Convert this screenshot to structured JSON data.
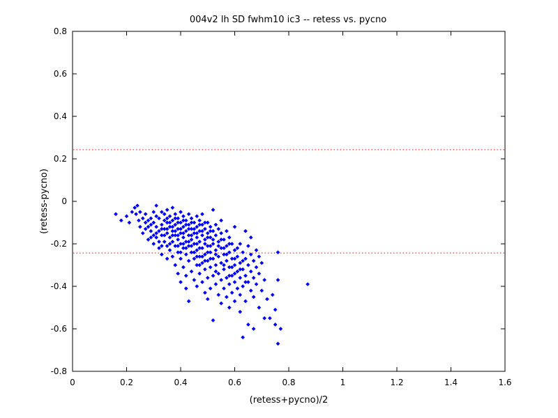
{
  "chart_data": {
    "type": "scatter",
    "title": "004v2 lh SD fwhm10 ic3 -- retess vs. pycno",
    "xlabel": "(retess+pycno)/2",
    "ylabel": "(retess-pycno)",
    "xlim": [
      0,
      1.6
    ],
    "ylim": [
      -0.8,
      0.8
    ],
    "x_ticks": [
      "0",
      "0.2",
      "0.4",
      "0.6",
      "0.8",
      "1",
      "1.2",
      "1.4",
      "1.6"
    ],
    "y_ticks": [
      "-0.8",
      "-0.6",
      "-0.4",
      "-0.2",
      "0",
      "0.2",
      "0.4",
      "0.6",
      "0.8"
    ],
    "grid": false,
    "reference_lines": [
      {
        "y": 0.243,
        "style": "dotted",
        "color": "#ff0000"
      },
      {
        "y": -0.243,
        "style": "dotted",
        "color": "#ff0000"
      }
    ],
    "marker_color": "#0000ff",
    "points": [
      [
        0.16,
        -0.06
      ],
      [
        0.18,
        -0.09
      ],
      [
        0.2,
        -0.07
      ],
      [
        0.21,
        -0.1
      ],
      [
        0.22,
        -0.05
      ],
      [
        0.23,
        -0.03
      ],
      [
        0.235,
        -0.06
      ],
      [
        0.24,
        -0.02
      ],
      [
        0.245,
        -0.09
      ],
      [
        0.25,
        -0.05
      ],
      [
        0.25,
        -0.12
      ],
      [
        0.26,
        -0.08
      ],
      [
        0.26,
        -0.15
      ],
      [
        0.27,
        -0.1
      ],
      [
        0.27,
        -0.06
      ],
      [
        0.28,
        -0.12
      ],
      [
        0.28,
        -0.18
      ],
      [
        0.29,
        -0.08
      ],
      [
        0.29,
        -0.14
      ],
      [
        0.3,
        -0.05
      ],
      [
        0.3,
        -0.1
      ],
      [
        0.3,
        -0.2
      ],
      [
        0.31,
        -0.02
      ],
      [
        0.31,
        -0.12
      ],
      [
        0.31,
        -0.17
      ],
      [
        0.32,
        -0.08
      ],
      [
        0.32,
        -0.14
      ],
      [
        0.32,
        -0.22
      ],
      [
        0.33,
        -0.05
      ],
      [
        0.33,
        -0.11
      ],
      [
        0.33,
        -0.16
      ],
      [
        0.33,
        -0.25
      ],
      [
        0.34,
        -0.09
      ],
      [
        0.34,
        -0.13
      ],
      [
        0.34,
        -0.19
      ],
      [
        0.35,
        -0.04
      ],
      [
        0.35,
        -0.1
      ],
      [
        0.35,
        -0.15
      ],
      [
        0.35,
        -0.21
      ],
      [
        0.35,
        -0.27
      ],
      [
        0.36,
        -0.07
      ],
      [
        0.36,
        -0.12
      ],
      [
        0.36,
        -0.17
      ],
      [
        0.36,
        -0.23
      ],
      [
        0.37,
        -0.03
      ],
      [
        0.37,
        -0.09
      ],
      [
        0.37,
        -0.14
      ],
      [
        0.37,
        -0.19
      ],
      [
        0.37,
        -0.26
      ],
      [
        0.38,
        -0.06
      ],
      [
        0.38,
        -0.11
      ],
      [
        0.38,
        -0.16
      ],
      [
        0.38,
        -0.21
      ],
      [
        0.38,
        -0.3
      ],
      [
        0.39,
        -0.08
      ],
      [
        0.39,
        -0.13
      ],
      [
        0.39,
        -0.18
      ],
      [
        0.39,
        -0.24
      ],
      [
        0.39,
        -0.34
      ],
      [
        0.4,
        -0.05
      ],
      [
        0.4,
        -0.1
      ],
      [
        0.4,
        -0.15
      ],
      [
        0.4,
        -0.2
      ],
      [
        0.4,
        -0.27
      ],
      [
        0.4,
        -0.38
      ],
      [
        0.41,
        -0.07
      ],
      [
        0.41,
        -0.12
      ],
      [
        0.41,
        -0.17
      ],
      [
        0.41,
        -0.22
      ],
      [
        0.41,
        -0.31
      ],
      [
        0.42,
        -0.09
      ],
      [
        0.42,
        -0.14
      ],
      [
        0.42,
        -0.19
      ],
      [
        0.42,
        -0.25
      ],
      [
        0.42,
        -0.35
      ],
      [
        0.42,
        -0.41
      ],
      [
        0.43,
        -0.06
      ],
      [
        0.43,
        -0.11
      ],
      [
        0.43,
        -0.16
      ],
      [
        0.43,
        -0.21
      ],
      [
        0.43,
        -0.28
      ],
      [
        0.43,
        -0.47
      ],
      [
        0.44,
        -0.08
      ],
      [
        0.44,
        -0.13
      ],
      [
        0.44,
        -0.18
      ],
      [
        0.44,
        -0.24
      ],
      [
        0.44,
        -0.33
      ],
      [
        0.45,
        -0.1
      ],
      [
        0.45,
        -0.15
      ],
      [
        0.45,
        -0.2
      ],
      [
        0.45,
        -0.27
      ],
      [
        0.45,
        -0.37
      ],
      [
        0.46,
        -0.07
      ],
      [
        0.46,
        -0.12
      ],
      [
        0.46,
        -0.17
      ],
      [
        0.46,
        -0.23
      ],
      [
        0.46,
        -0.3
      ],
      [
        0.46,
        -0.4
      ],
      [
        0.47,
        -0.09
      ],
      [
        0.47,
        -0.14
      ],
      [
        0.47,
        -0.19
      ],
      [
        0.47,
        -0.26
      ],
      [
        0.47,
        -0.34
      ],
      [
        0.48,
        -0.06
      ],
      [
        0.48,
        -0.11
      ],
      [
        0.48,
        -0.16
      ],
      [
        0.48,
        -0.22
      ],
      [
        0.48,
        -0.29
      ],
      [
        0.48,
        -0.38
      ],
      [
        0.49,
        -0.13
      ],
      [
        0.49,
        -0.18
      ],
      [
        0.49,
        -0.25
      ],
      [
        0.49,
        -0.32
      ],
      [
        0.49,
        -0.43
      ],
      [
        0.5,
        -0.1
      ],
      [
        0.5,
        -0.15
      ],
      [
        0.5,
        -0.21
      ],
      [
        0.5,
        -0.28
      ],
      [
        0.5,
        -0.36
      ],
      [
        0.5,
        -0.46
      ],
      [
        0.51,
        -0.12
      ],
      [
        0.51,
        -0.17
      ],
      [
        0.51,
        -0.24
      ],
      [
        0.51,
        -0.31
      ],
      [
        0.51,
        -0.41
      ],
      [
        0.52,
        -0.04
      ],
      [
        0.52,
        -0.14
      ],
      [
        0.52,
        -0.2
      ],
      [
        0.52,
        -0.27
      ],
      [
        0.52,
        -0.35
      ],
      [
        0.52,
        -0.56
      ],
      [
        0.53,
        -0.11
      ],
      [
        0.53,
        -0.16
      ],
      [
        0.53,
        -0.23
      ],
      [
        0.53,
        -0.3
      ],
      [
        0.53,
        -0.39
      ],
      [
        0.54,
        -0.13
      ],
      [
        0.54,
        -0.19
      ],
      [
        0.54,
        -0.26
      ],
      [
        0.54,
        -0.34
      ],
      [
        0.54,
        -0.44
      ],
      [
        0.55,
        -0.09
      ],
      [
        0.55,
        -0.15
      ],
      [
        0.55,
        -0.22
      ],
      [
        0.55,
        -0.29
      ],
      [
        0.55,
        -0.37
      ],
      [
        0.55,
        -0.48
      ],
      [
        0.56,
        -0.18
      ],
      [
        0.56,
        -0.25
      ],
      [
        0.56,
        -0.32
      ],
      [
        0.56,
        -0.41
      ],
      [
        0.57,
        -0.14
      ],
      [
        0.57,
        -0.21
      ],
      [
        0.57,
        -0.28
      ],
      [
        0.57,
        -0.36
      ],
      [
        0.57,
        -0.45
      ],
      [
        0.58,
        -0.17
      ],
      [
        0.58,
        -0.24
      ],
      [
        0.58,
        -0.31
      ],
      [
        0.58,
        -0.39
      ],
      [
        0.58,
        -0.5
      ],
      [
        0.59,
        -0.2
      ],
      [
        0.59,
        -0.27
      ],
      [
        0.59,
        -0.35
      ],
      [
        0.59,
        -0.43
      ],
      [
        0.6,
        -0.12
      ],
      [
        0.6,
        -0.23
      ],
      [
        0.6,
        -0.3
      ],
      [
        0.6,
        -0.38
      ],
      [
        0.6,
        -0.47
      ],
      [
        0.61,
        -0.26
      ],
      [
        0.61,
        -0.33
      ],
      [
        0.61,
        -0.41
      ],
      [
        0.62,
        -0.2
      ],
      [
        0.62,
        -0.29
      ],
      [
        0.62,
        -0.36
      ],
      [
        0.62,
        -0.44
      ],
      [
        0.62,
        -0.52
      ],
      [
        0.63,
        -0.64
      ],
      [
        0.63,
        -0.24
      ],
      [
        0.63,
        -0.32
      ],
      [
        0.63,
        -0.4
      ],
      [
        0.64,
        -0.14
      ],
      [
        0.64,
        -0.27
      ],
      [
        0.64,
        -0.35
      ],
      [
        0.64,
        -0.47
      ],
      [
        0.65,
        -0.21
      ],
      [
        0.65,
        -0.3
      ],
      [
        0.65,
        -0.38
      ],
      [
        0.65,
        -0.58
      ],
      [
        0.66,
        -0.17
      ],
      [
        0.66,
        -0.25
      ],
      [
        0.66,
        -0.33
      ],
      [
        0.66,
        -0.42
      ],
      [
        0.67,
        -0.28
      ],
      [
        0.67,
        -0.36
      ],
      [
        0.67,
        -0.45
      ],
      [
        0.67,
        -0.6
      ],
      [
        0.68,
        -0.23
      ],
      [
        0.68,
        -0.31
      ],
      [
        0.68,
        -0.39
      ],
      [
        0.69,
        -0.26
      ],
      [
        0.69,
        -0.34
      ],
      [
        0.69,
        -0.5
      ],
      [
        0.7,
        -0.29
      ],
      [
        0.7,
        -0.42
      ],
      [
        0.71,
        -0.37
      ],
      [
        0.71,
        -0.55
      ],
      [
        0.72,
        -0.46
      ],
      [
        0.73,
        -0.55
      ],
      [
        0.74,
        -0.44
      ],
      [
        0.75,
        -0.51
      ],
      [
        0.75,
        -0.58
      ],
      [
        0.76,
        -0.24
      ],
      [
        0.76,
        -0.37
      ],
      [
        0.76,
        -0.67
      ],
      [
        0.77,
        -0.6
      ],
      [
        0.87,
        -0.39
      ],
      [
        0.29,
        -0.11
      ],
      [
        0.3,
        -0.16
      ],
      [
        0.31,
        -0.07
      ],
      [
        0.32,
        -0.19
      ],
      [
        0.33,
        -0.21
      ],
      [
        0.34,
        -0.06
      ],
      [
        0.35,
        -0.13
      ],
      [
        0.36,
        -0.1
      ],
      [
        0.36,
        -0.2
      ],
      [
        0.37,
        -0.12
      ],
      [
        0.38,
        -0.14
      ],
      [
        0.38,
        -0.08
      ],
      [
        0.39,
        -0.1
      ],
      [
        0.39,
        -0.21
      ],
      [
        0.4,
        -0.13
      ],
      [
        0.4,
        -0.24
      ],
      [
        0.41,
        -0.15
      ],
      [
        0.41,
        -0.09
      ],
      [
        0.42,
        -0.11
      ],
      [
        0.42,
        -0.22
      ],
      [
        0.43,
        -0.13
      ],
      [
        0.43,
        -0.19
      ],
      [
        0.44,
        -0.1
      ],
      [
        0.44,
        -0.21
      ],
      [
        0.45,
        -0.13
      ],
      [
        0.45,
        -0.24
      ],
      [
        0.46,
        -0.15
      ],
      [
        0.46,
        -0.2
      ],
      [
        0.47,
        -0.11
      ],
      [
        0.47,
        -0.22
      ],
      [
        0.48,
        -0.14
      ],
      [
        0.48,
        -0.26
      ],
      [
        0.49,
        -0.1
      ],
      [
        0.49,
        -0.2
      ],
      [
        0.5,
        -0.17
      ],
      [
        0.5,
        -0.24
      ],
      [
        0.51,
        -0.14
      ],
      [
        0.51,
        -0.21
      ],
      [
        0.52,
        -0.18
      ],
      [
        0.53,
        -0.25
      ],
      [
        0.54,
        -0.21
      ],
      [
        0.55,
        -0.18
      ],
      [
        0.56,
        -0.22
      ],
      [
        0.57,
        -0.25
      ],
      [
        0.58,
        -0.2
      ],
      [
        0.59,
        -0.31
      ],
      [
        0.6,
        -0.27
      ],
      [
        0.61,
        -0.22
      ],
      [
        0.62,
        -0.32
      ],
      [
        0.63,
        -0.28
      ],
      [
        0.27,
        -0.13
      ],
      [
        0.28,
        -0.09
      ],
      [
        0.29,
        -0.17
      ],
      [
        0.31,
        -0.15
      ],
      [
        0.33,
        -0.13
      ],
      [
        0.34,
        -0.16
      ],
      [
        0.35,
        -0.08
      ],
      [
        0.37,
        -0.16
      ],
      [
        0.39,
        -0.16
      ],
      [
        0.41,
        -0.2
      ],
      [
        0.44,
        -0.16
      ],
      [
        0.46,
        -0.26
      ],
      [
        0.47,
        -0.3
      ],
      [
        0.49,
        -0.28
      ],
      [
        0.51,
        -0.27
      ],
      [
        0.53,
        -0.33
      ],
      [
        0.56,
        -0.3
      ],
      [
        0.58,
        -0.35
      ],
      [
        0.6,
        -0.34
      ],
      [
        0.64,
        -0.38
      ]
    ]
  }
}
